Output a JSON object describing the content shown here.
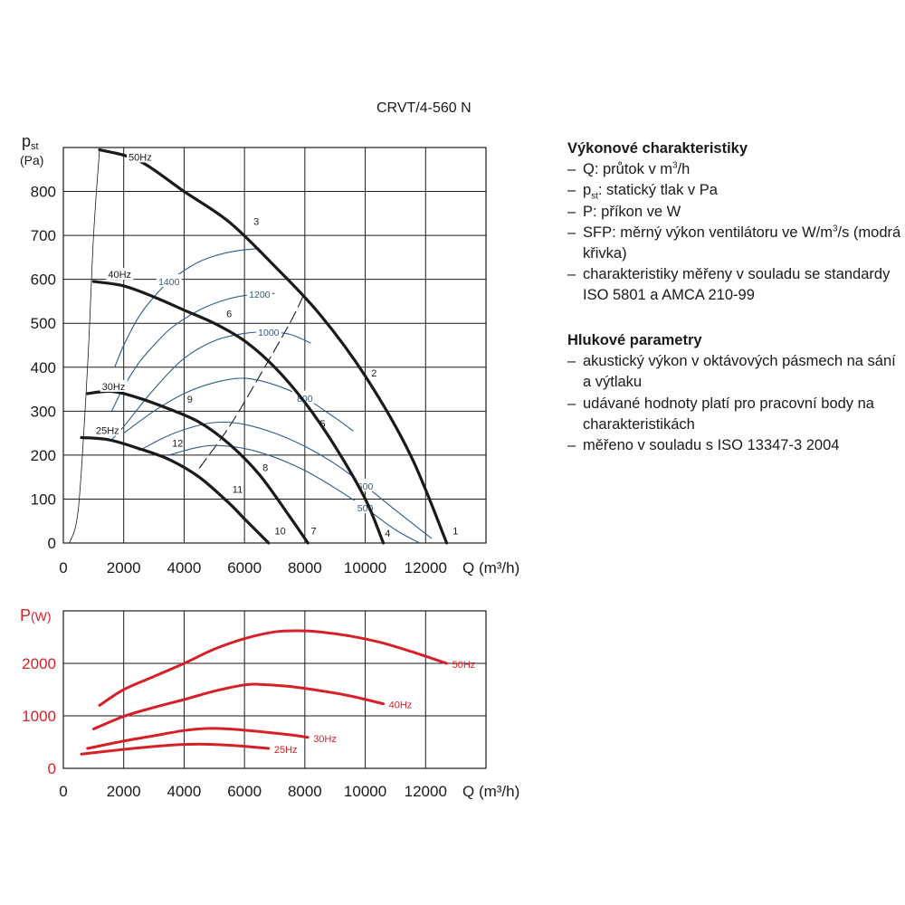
{
  "model_title": "CRVT/4-560 N",
  "sidebar": {
    "performance": {
      "heading": "Výkonové charakteristiky",
      "items": [
        {
          "pre": "Q: průtok v m",
          "sup": "3",
          "post": "/h"
        },
        {
          "pre": "p",
          "sub": "st",
          "post": ": statický tlak v Pa"
        },
        {
          "pre": "P: příkon ve W"
        },
        {
          "pre": "SFP: měrný výkon ventilátoru ve W/m",
          "sup": "3",
          "post": "/s (modrá křivka)"
        },
        {
          "pre": "charakteristiky měřeny v souladu se standardy ISO 5801 a AMCA 210-99"
        }
      ]
    },
    "noise": {
      "heading": "Hlukové parametry",
      "items": [
        {
          "pre": "akustický výkon v oktávových pásmech na sání a výtlaku"
        },
        {
          "pre": "udávané hodnoty platí pro pracovní body na charakteristikách"
        },
        {
          "pre": "měřeno v souladu s ISO 13347-3 2004"
        }
      ]
    }
  },
  "chart_data": [
    {
      "type": "line",
      "title": "",
      "ylabel_main": "p",
      "ylabel_sub": "st",
      "ylabel_unit": "(Pa)",
      "xlabel": "Q (m³/h)",
      "xlim": [
        0,
        14000
      ],
      "ylim": [
        0,
        900
      ],
      "x_ticks": [
        "0",
        "2000",
        "4000",
        "6000",
        "8000",
        "10000",
        "12000"
      ],
      "y_ticks": [
        "0",
        "100",
        "200",
        "300",
        "400",
        "500",
        "600",
        "700",
        "800"
      ],
      "grid": true,
      "series": [
        {
          "name": "50Hz",
          "color": "#1a1a1a",
          "x": [
            1200,
            2500,
            4000,
            5500,
            7000,
            8500,
            10000,
            11500,
            12700
          ],
          "y": [
            895,
            870,
            800,
            730,
            630,
            520,
            380,
            200,
            0
          ]
        },
        {
          "name": "40Hz",
          "color": "#1a1a1a",
          "x": [
            1000,
            2000,
            3000,
            4000,
            5000,
            6000,
            7000,
            8000,
            9000,
            10000,
            10600
          ],
          "y": [
            595,
            585,
            560,
            530,
            500,
            460,
            400,
            320,
            220,
            100,
            0
          ]
        },
        {
          "name": "30Hz",
          "color": "#1a1a1a",
          "x": [
            800,
            1600,
            2500,
            3500,
            4500,
            5500,
            6500,
            7500,
            8100
          ],
          "y": [
            340,
            345,
            330,
            305,
            275,
            225,
            155,
            60,
            0
          ]
        },
        {
          "name": "25Hz",
          "color": "#1a1a1a",
          "x": [
            600,
            1500,
            2500,
            3500,
            4500,
            5500,
            6000,
            6800
          ],
          "y": [
            240,
            235,
            215,
            190,
            150,
            90,
            55,
            0
          ]
        }
      ],
      "sfp_curves": [
        {
          "label": "1400",
          "color": "#2e5a8c",
          "x": [
            1700,
            2000,
            2500,
            3000,
            3500,
            4000,
            4500,
            5000,
            5500,
            6000,
            6500
          ],
          "y": [
            400,
            450,
            515,
            560,
            595,
            620,
            640,
            653,
            662,
            667,
            670
          ]
        },
        {
          "label": "1200",
          "color": "#2e5a8c",
          "x": [
            1600,
            2000,
            2500,
            3000,
            3500,
            4000,
            4500,
            5000,
            5500,
            6000,
            6500,
            7000
          ],
          "y": [
            300,
            355,
            410,
            450,
            485,
            510,
            530,
            545,
            556,
            563,
            566,
            568
          ]
        },
        {
          "label": "1000",
          "color": "#2e5a8c",
          "x": [
            1600,
            2000,
            3000,
            4000,
            5000,
            6000,
            6800,
            7500,
            8200
          ],
          "y": [
            235,
            265,
            350,
            420,
            460,
            477,
            480,
            475,
            455
          ]
        },
        {
          "label": "800",
          "color": "#2e5a8c",
          "x": [
            2000,
            3000,
            4000,
            5000,
            6000,
            7000,
            8000,
            9000,
            9600
          ],
          "y": [
            250,
            300,
            340,
            365,
            375,
            360,
            330,
            285,
            255
          ]
        },
        {
          "label": "600",
          "color": "#2e5a8c",
          "x": [
            2500,
            3500,
            4500,
            5200,
            6000,
            7000,
            8000,
            9000,
            10000,
            11000,
            12200
          ],
          "y": [
            210,
            245,
            268,
            275,
            270,
            250,
            220,
            180,
            130,
            75,
            10
          ]
        },
        {
          "label": "500",
          "color": "#2e5a8c",
          "x": [
            3500,
            4000,
            4500,
            5000,
            6000,
            7000,
            8000,
            9000,
            10000,
            11000,
            11800
          ],
          "y": [
            200,
            210,
            218,
            222,
            215,
            195,
            165,
            125,
            80,
            30,
            0
          ]
        }
      ],
      "system_curves": [
        {
          "name": "left",
          "x": [
            200,
            500,
            800,
            1000,
            1200
          ],
          "y": [
            0,
            80,
            400,
            700,
            895
          ]
        },
        {
          "name": "dashed",
          "x": [
            4500,
            5500,
            6500,
            7500,
            8000
          ],
          "y": [
            170,
            265,
            380,
            500,
            570
          ]
        }
      ],
      "point_labels": [
        {
          "label": "1",
          "x": 12900,
          "y": 15
        },
        {
          "label": "2",
          "x": 10200,
          "y": 375
        },
        {
          "label": "3",
          "x": 6300,
          "y": 720
        },
        {
          "label": "4",
          "x": 10650,
          "y": 10
        },
        {
          "label": "5",
          "x": 8500,
          "y": 260
        },
        {
          "label": "6",
          "x": 5400,
          "y": 510
        },
        {
          "label": "7",
          "x": 8200,
          "y": 15
        },
        {
          "label": "8",
          "x": 6600,
          "y": 160
        },
        {
          "label": "9",
          "x": 4100,
          "y": 315
        },
        {
          "label": "10",
          "x": 7000,
          "y": 15
        },
        {
          "label": "11",
          "x": 5600,
          "y": 110
        },
        {
          "label": "12",
          "x": 3600,
          "y": 215
        }
      ]
    },
    {
      "type": "line",
      "title": "",
      "ylabel_main": "P",
      "ylabel_unit": "(W)",
      "xlabel": "Q (m³/h)",
      "xlim": [
        0,
        14000
      ],
      "ylim": [
        0,
        3000
      ],
      "x_ticks": [
        "0",
        "2000",
        "4000",
        "6000",
        "8000",
        "10000",
        "12000"
      ],
      "y_ticks": [
        "0",
        "1000",
        "2000"
      ],
      "grid": true,
      "series": [
        {
          "name": "50Hz",
          "color": "#d62027",
          "x": [
            1200,
            2000,
            3000,
            4000,
            5000,
            6000,
            7000,
            7800,
            8500,
            9500,
            10500,
            11500,
            12700
          ],
          "y": [
            1200,
            1500,
            1750,
            2000,
            2270,
            2470,
            2600,
            2620,
            2600,
            2520,
            2400,
            2230,
            2000
          ]
        },
        {
          "name": "40Hz",
          "color": "#d62027",
          "x": [
            1000,
            2000,
            3000,
            4000,
            5000,
            6000,
            6500,
            7500,
            8500,
            9500,
            10600
          ],
          "y": [
            750,
            990,
            1160,
            1310,
            1470,
            1590,
            1600,
            1560,
            1480,
            1380,
            1230
          ]
        },
        {
          "name": "30Hz",
          "color": "#d62027",
          "x": [
            800,
            2000,
            3000,
            4000,
            4800,
            5500,
            6500,
            7500,
            8100
          ],
          "y": [
            380,
            520,
            620,
            720,
            760,
            750,
            700,
            640,
            590
          ]
        },
        {
          "name": "25Hz",
          "color": "#d62027",
          "x": [
            600,
            1500,
            2500,
            3500,
            4500,
            5500,
            6200,
            6800
          ],
          "y": [
            270,
            330,
            390,
            440,
            460,
            440,
            410,
            380
          ]
        }
      ]
    }
  ]
}
